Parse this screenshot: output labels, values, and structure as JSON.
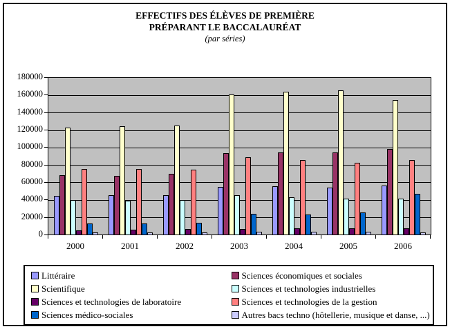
{
  "title": {
    "line1": "EFFECTIFS DES ÉLÈVES DE PREMIÈRE",
    "line2": "PRÉPARANT LE BACCALAURÉAT",
    "line3": "(par séries)"
  },
  "chart_data": {
    "type": "bar",
    "title": "EFFECTIFS DES ÉLÈVES DE PREMIÈRE PRÉPARANT LE BACCALAURÉAT (par séries)",
    "categories": [
      "2000",
      "2001",
      "2002",
      "2003",
      "2004",
      "2005",
      "2006"
    ],
    "series": [
      {
        "name": "Littéraire",
        "color": "#9999FF",
        "values": [
          44500,
          45000,
          45500,
          54500,
          55500,
          54000,
          56500
        ]
      },
      {
        "name": "Sciences économiques et sociales",
        "color": "#993366",
        "values": [
          68000,
          67500,
          69500,
          93500,
          94500,
          94500,
          98500
        ]
      },
      {
        "name": "Scientifique",
        "color": "#FFFFCC",
        "values": [
          123000,
          124500,
          125500,
          161000,
          164000,
          166000,
          154500
        ]
      },
      {
        "name": "Sciences et technologies industrielles",
        "color": "#CCFFFF",
        "values": [
          39500,
          39000,
          39500,
          45000,
          42500,
          41500,
          41000
        ]
      },
      {
        "name": "Sciences et technologies de laboratoire",
        "color": "#660066",
        "values": [
          5000,
          5500,
          6000,
          6500,
          7000,
          7500,
          7000
        ]
      },
      {
        "name": "Sciences et technologies de la gestion",
        "color": "#FF8080",
        "values": [
          75500,
          75000,
          74500,
          88500,
          85500,
          82500,
          85500
        ]
      },
      {
        "name": "Sciences médico-sociales",
        "color": "#0066CC",
        "values": [
          13000,
          13000,
          13500,
          23500,
          23000,
          25500,
          46500
        ]
      },
      {
        "name": "Autres bacs techno (hôtellerie, musique et danse, ...)",
        "color": "#CCCCFF",
        "values": [
          2000,
          2000,
          2500,
          3000,
          3000,
          3500,
          2500
        ]
      }
    ],
    "ylim": [
      0,
      180000
    ],
    "ytick_step": 20000,
    "grid": true,
    "plot_background": "#C0C0C0",
    "legend_position": "bottom"
  }
}
